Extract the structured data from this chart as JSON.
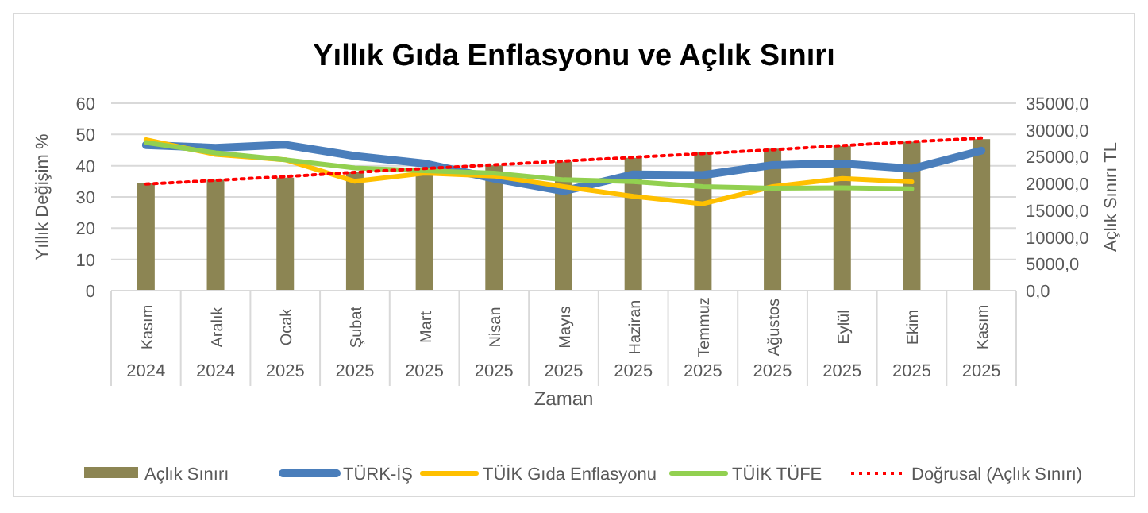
{
  "chart_data": {
    "type": "bar",
    "title": "Yıllık Gıda Enflasyonu ve Açlık Sınırı",
    "xlabel": "Zaman",
    "ylabel": "Yıllık Değişim %",
    "y2label": "Açlık Sınırı TL",
    "categories": [
      "Kasım\n2024",
      "Aralık\n2024",
      "Ocak\n2025",
      "Şubat\n2025",
      "Mart\n2025",
      "Nisan\n2025",
      "Mayıs\n2025",
      "Haziran\n2025",
      "Temmuz\n2025",
      "Ağustos\n2025",
      "Eylül\n2025",
      "Ekim\n2025",
      "Kasım\n2025"
    ],
    "series": [
      {
        "name": "Açlık Sınırı",
        "axis": "y2",
        "color": "#8c8553",
        "values": [
          20100,
          20700,
          21100,
          22100,
          22400,
          23400,
          24100,
          24800,
          25800,
          26500,
          27000,
          27800,
          28300
        ]
      },
      {
        "name": "TÜRK-İŞ",
        "type": "line",
        "color": "#4a7ebb",
        "values": [
          46.6,
          45.7,
          46.7,
          43.1,
          40.7,
          35.9,
          31.9,
          37.2,
          37.0,
          40.2,
          40.7,
          39.0,
          44.8
        ]
      },
      {
        "name": "TÜİK Gıda Enflasyonu",
        "type": "line",
        "color": "#ffc000",
        "values": [
          48.3,
          43.6,
          41.9,
          35.0,
          37.6,
          36.7,
          33.3,
          30.2,
          27.8,
          33.3,
          35.9,
          34.8,
          null
        ]
      },
      {
        "name": "TÜİK TÜFE",
        "type": "line",
        "color": "#92d050",
        "values": [
          47.4,
          44.1,
          41.9,
          39.3,
          38.4,
          37.6,
          35.5,
          34.9,
          33.3,
          32.8,
          32.9,
          32.6,
          null
        ]
      },
      {
        "name": "Doğrusal (Açlık Sınırı)",
        "type": "line",
        "axis": "y2",
        "line_style": "dotted",
        "color": "#ff0000",
        "values": [
          19900,
          20600,
          21300,
          22100,
          22800,
          23500,
          24200,
          24900,
          25600,
          26300,
          27100,
          27800,
          28500
        ]
      }
    ],
    "ylim": [
      0,
      60
    ],
    "yticks": [
      0,
      10,
      20,
      30,
      40,
      50,
      60
    ],
    "y2lim": [
      0,
      35000
    ],
    "y2ticks": [
      {
        "value": 0,
        "label": "0,0"
      },
      {
        "value": 5000,
        "label": "5000,0"
      },
      {
        "value": 10000,
        "label": "10000,0"
      },
      {
        "value": 15000,
        "label": "15000,0"
      },
      {
        "value": 20000,
        "label": "20000,0"
      },
      {
        "value": 25000,
        "label": "25000,0"
      },
      {
        "value": 30000,
        "label": "30000,0"
      },
      {
        "value": 35000,
        "label": "35000,0"
      }
    ],
    "grid": "y",
    "legend": "bottom",
    "marker": "none"
  }
}
